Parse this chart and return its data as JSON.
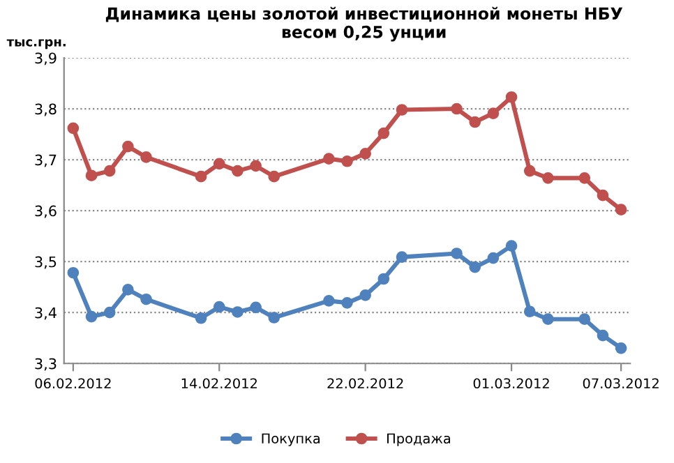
{
  "chart_data": {
    "type": "line",
    "title": "Динамика цены золотой инвестиционной монеты НБУ\nвесом 0,25 унции",
    "ylabel": "тыс.грн.",
    "x": [
      "2012-02-06",
      "2012-02-07",
      "2012-02-08",
      "2012-02-09",
      "2012-02-10",
      "2012-02-13",
      "2012-02-14",
      "2012-02-15",
      "2012-02-16",
      "2012-02-17",
      "2012-02-20",
      "2012-02-21",
      "2012-02-22",
      "2012-02-23",
      "2012-02-24",
      "2012-02-27",
      "2012-02-28",
      "2012-02-29",
      "2012-03-01",
      "2012-03-02",
      "2012-03-03",
      "2012-03-05",
      "2012-03-06",
      "2012-03-07"
    ],
    "series": [
      {
        "name": "Покупка",
        "color": "#4f81bd",
        "values": [
          3.478,
          3.392,
          3.4,
          3.445,
          3.426,
          3.389,
          3.411,
          3.401,
          3.41,
          3.39,
          3.423,
          3.419,
          3.434,
          3.466,
          3.509,
          3.516,
          3.489,
          3.507,
          3.531,
          3.402,
          3.387,
          3.387,
          3.355,
          3.33
        ]
      },
      {
        "name": "Продажа",
        "color": "#c0504d",
        "values": [
          3.762,
          3.669,
          3.678,
          3.726,
          3.705,
          3.667,
          3.692,
          3.678,
          3.688,
          3.667,
          3.702,
          3.697,
          3.712,
          3.752,
          3.798,
          3.8,
          3.774,
          3.791,
          3.823,
          3.678,
          3.664,
          3.664,
          3.63,
          3.602
        ]
      }
    ],
    "xlim": [
      "2012-02-05T12:00",
      "2012-03-07T12:00"
    ],
    "xticks": [
      {
        "value": "2012-02-06",
        "label": "06.02.2012"
      },
      {
        "value": "2012-02-14",
        "label": "14.02.2012"
      },
      {
        "value": "2012-02-22",
        "label": "22.02.2012"
      },
      {
        "value": "2012-03-01",
        "label": "01.03.2012"
      },
      {
        "value": "2012-03-07",
        "label": "07.03.2012"
      }
    ],
    "ylim": [
      3.3,
      3.9
    ],
    "yticks": [
      {
        "value": 3.3,
        "label": "3,3"
      },
      {
        "value": 3.4,
        "label": "3,4"
      },
      {
        "value": 3.5,
        "label": "3,5"
      },
      {
        "value": 3.6,
        "label": "3,6"
      },
      {
        "value": 3.7,
        "label": "3,7"
      },
      {
        "value": 3.8,
        "label": "3,8"
      },
      {
        "value": 3.9,
        "label": "3,9"
      }
    ],
    "grid": "y",
    "legend": "bottom",
    "marker": "circle",
    "line_style": "solid"
  }
}
